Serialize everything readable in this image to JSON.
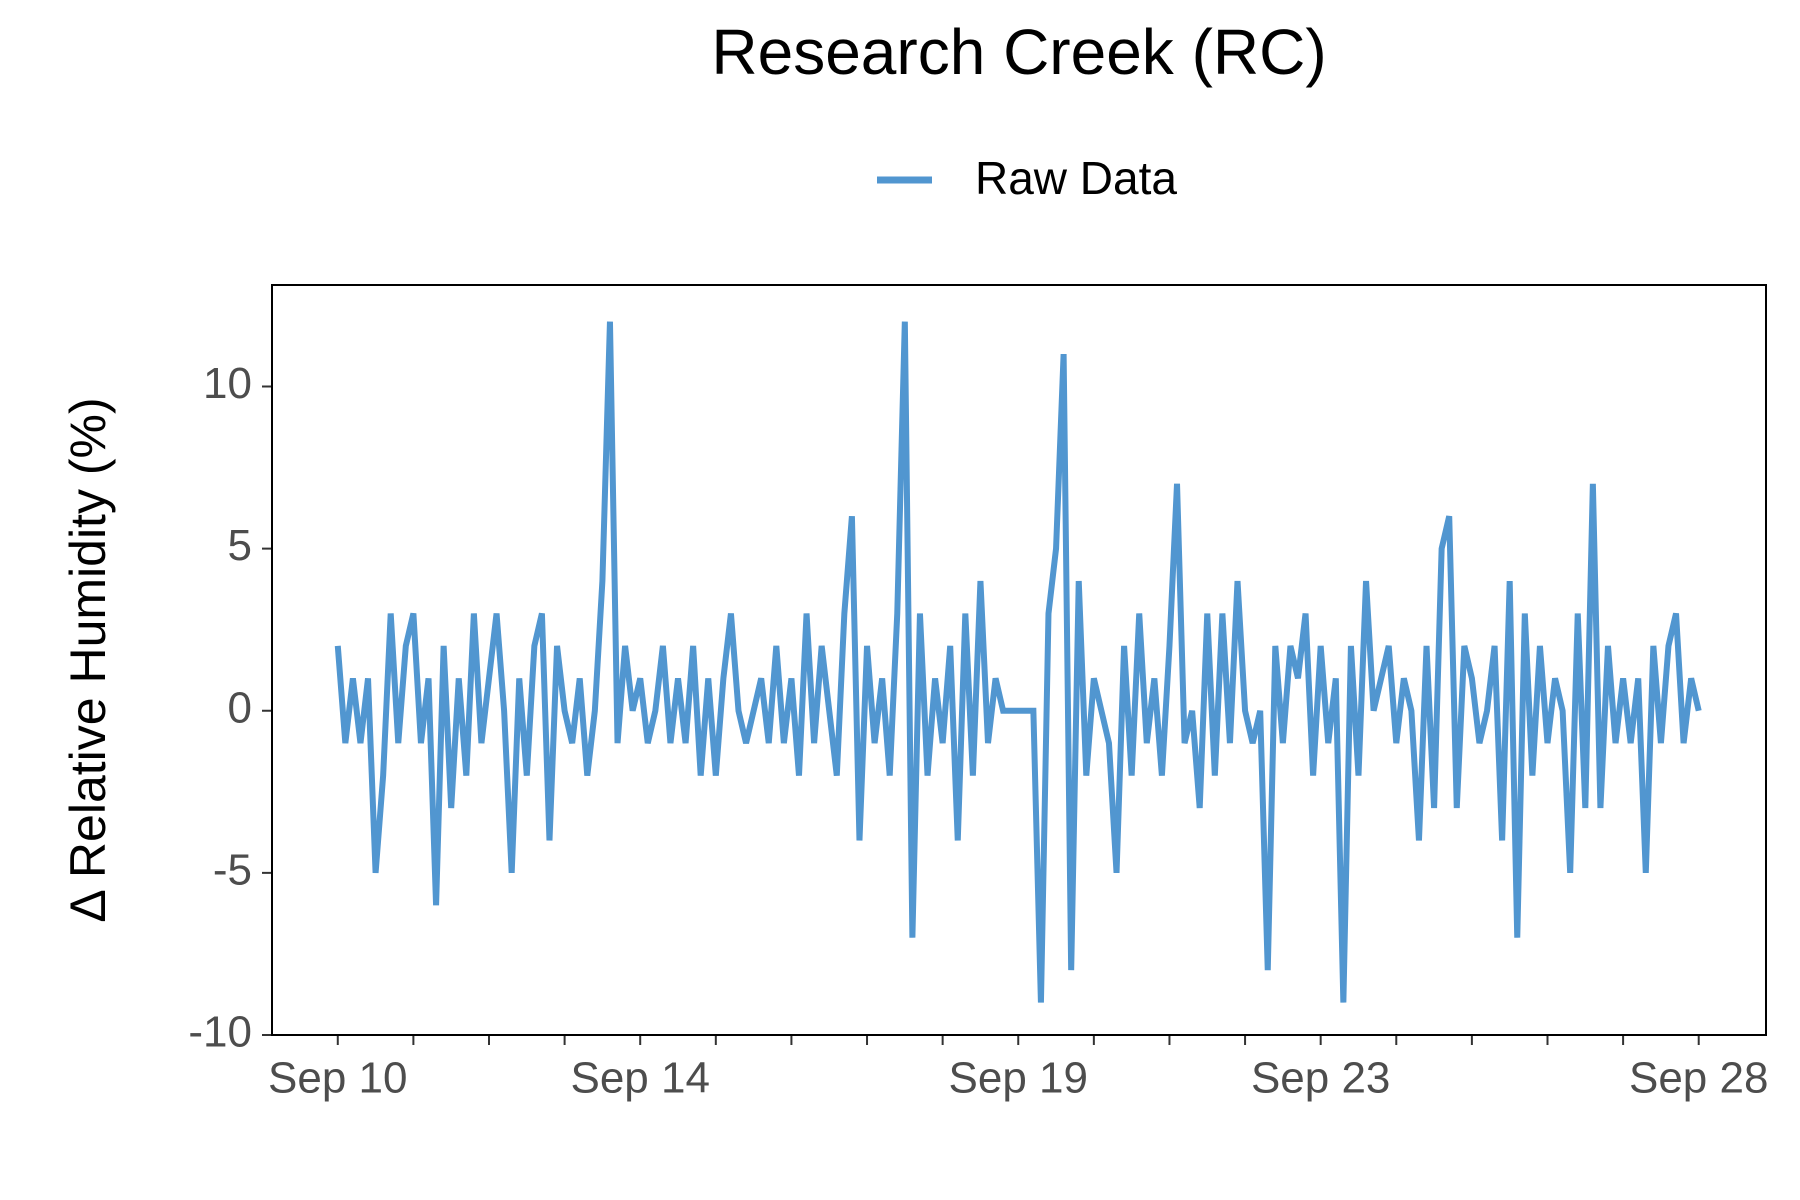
{
  "chart_data": {
    "type": "line",
    "title": "Research Creek (RC)",
    "ylabel": "Δ Relative Humidity (%)",
    "legend": "top",
    "series": [
      {
        "name": "Raw Data",
        "color": "#5196d0",
        "x": [
          10.0,
          10.1,
          10.2,
          10.3,
          10.4,
          10.5,
          10.6,
          10.7,
          10.8,
          10.9,
          11.0,
          11.1,
          11.2,
          11.3,
          11.4,
          11.5,
          11.6,
          11.7,
          11.8,
          11.9,
          12.0,
          12.1,
          12.2,
          12.3,
          12.4,
          12.5,
          12.6,
          12.7,
          12.8,
          12.9,
          13.0,
          13.1,
          13.2,
          13.3,
          13.4,
          13.5,
          13.6,
          13.7,
          13.8,
          13.9,
          14.0,
          14.1,
          14.2,
          14.3,
          14.4,
          14.5,
          14.6,
          14.7,
          14.8,
          14.9,
          15.0,
          15.1,
          15.2,
          15.3,
          15.4,
          15.5,
          15.6,
          15.7,
          15.8,
          15.9,
          16.0,
          16.1,
          16.2,
          16.3,
          16.4,
          16.5,
          16.6,
          16.7,
          16.8,
          16.9,
          17.0,
          17.1,
          17.2,
          17.3,
          17.4,
          17.5,
          17.6,
          17.7,
          17.8,
          17.9,
          18.0,
          18.1,
          18.2,
          18.3,
          18.4,
          18.5,
          18.6,
          18.7,
          18.8,
          18.9,
          19.0,
          19.1,
          19.2,
          19.3,
          19.4,
          19.5,
          19.6,
          19.7,
          19.8,
          19.9,
          20.0,
          20.1,
          20.2,
          20.3,
          20.4,
          20.5,
          20.6,
          20.7,
          20.8,
          20.9,
          21.0,
          21.1,
          21.2,
          21.3,
          21.4,
          21.5,
          21.6,
          21.7,
          21.8,
          21.9,
          22.0,
          22.1,
          22.2,
          22.3,
          22.4,
          22.5,
          22.6,
          22.7,
          22.8,
          22.9,
          23.0,
          23.1,
          23.2,
          23.3,
          23.4,
          23.5,
          23.6,
          23.7,
          23.8,
          23.9,
          24.0,
          24.1,
          24.2,
          24.3,
          24.4,
          24.5,
          24.6,
          24.7,
          24.8,
          24.9,
          25.0,
          25.1,
          25.2,
          25.3,
          25.4,
          25.5,
          25.6,
          25.7,
          25.8,
          25.9,
          26.0,
          26.1,
          26.2,
          26.3,
          26.4,
          26.5,
          26.6,
          26.7,
          26.8,
          26.9,
          27.0,
          27.1,
          27.2,
          27.3,
          27.4,
          27.5,
          27.6,
          27.7,
          27.8,
          27.9,
          28.0
        ],
        "values": [
          2,
          -1,
          1,
          -1,
          1,
          -5,
          -2,
          3,
          -1,
          2,
          3,
          -1,
          1,
          -6,
          2,
          -3,
          1,
          -2,
          3,
          -1,
          1,
          3,
          0,
          -5,
          1,
          -2,
          2,
          3,
          -4,
          2,
          0,
          -1,
          1,
          -2,
          0,
          4,
          12,
          -1,
          2,
          0,
          1,
          -1,
          0,
          2,
          -1,
          1,
          -1,
          2,
          -2,
          1,
          -2,
          1,
          3,
          0,
          -1,
          0,
          1,
          -1,
          2,
          -1,
          1,
          -2,
          3,
          -1,
          2,
          0,
          -2,
          3,
          6,
          -4,
          2,
          -1,
          1,
          -2,
          3,
          12,
          -7,
          3,
          -2,
          1,
          -1,
          2,
          -4,
          3,
          -2,
          4,
          -1,
          1,
          0,
          0,
          0,
          0,
          0,
          -9,
          3,
          5,
          11,
          -8,
          4,
          -2,
          1,
          0,
          -1,
          -5,
          2,
          -2,
          3,
          -1,
          1,
          -2,
          2,
          7,
          -1,
          0,
          -3,
          3,
          -2,
          3,
          -1,
          4,
          0,
          -1,
          0,
          -8,
          2,
          -1,
          2,
          1,
          3,
          -2,
          2,
          -1,
          1,
          -9,
          2,
          -2,
          4,
          0,
          1,
          2,
          -1,
          1,
          0,
          -4,
          2,
          -3,
          5,
          6,
          -3,
          2,
          1,
          -1,
          0,
          2,
          -4,
          4,
          -7,
          3,
          -2,
          2,
          -1,
          1,
          0,
          -5,
          3,
          -3,
          7,
          -3,
          2,
          -1,
          1,
          -1,
          1,
          -5,
          2,
          -1,
          2,
          3,
          -1,
          1,
          0
        ]
      }
    ],
    "xlim": [
      9.13,
      28.89
    ],
    "xticks": [
      {
        "value": 10,
        "label": "Sep 10"
      },
      {
        "value": 14,
        "label": "Sep 14"
      },
      {
        "value": 19,
        "label": "Sep 19"
      },
      {
        "value": 23,
        "label": "Sep 23"
      },
      {
        "value": 28,
        "label": "Sep 28"
      }
    ],
    "xminorticks": [
      11,
      12,
      13,
      15,
      16,
      17,
      18,
      20,
      21,
      22,
      24,
      25,
      26,
      27
    ],
    "ylim": [
      -10,
      13.13
    ],
    "yticks": [
      -10,
      -5,
      0,
      5,
      10
    ],
    "grid": false
  }
}
